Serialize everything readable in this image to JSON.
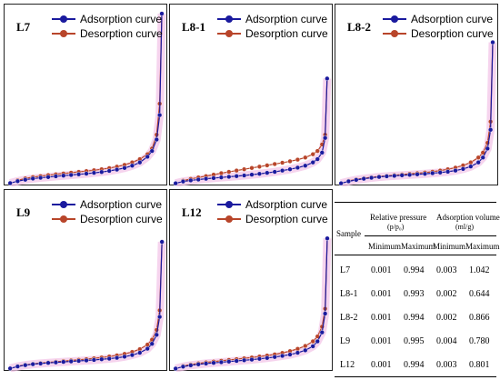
{
  "legend": {
    "adsorption_label": "Adsorption curve",
    "desorption_label": "Desorption curve"
  },
  "colors": {
    "adsorption": "#1a1a9e",
    "desorption": "#b8452a",
    "pink_glow": "#f3c6e8"
  },
  "chart_data": [
    {
      "type": "line",
      "title": "L7",
      "xlabel": "",
      "ylabel": "",
      "x_unit": "p/p0",
      "xlim": [
        0,
        1
      ],
      "ylim": [
        0,
        1.042
      ],
      "grid": false,
      "legend_position": "top",
      "series": [
        {
          "name": "Adsorption curve",
          "x": [
            0.001,
            0.05,
            0.1,
            0.15,
            0.2,
            0.25,
            0.3,
            0.35,
            0.4,
            0.45,
            0.5,
            0.55,
            0.6,
            0.65,
            0.7,
            0.75,
            0.8,
            0.85,
            0.9,
            0.93,
            0.96,
            0.98,
            0.994
          ],
          "y": [
            0.003,
            0.015,
            0.024,
            0.031,
            0.036,
            0.04,
            0.045,
            0.049,
            0.053,
            0.057,
            0.061,
            0.066,
            0.071,
            0.078,
            0.086,
            0.096,
            0.11,
            0.13,
            0.165,
            0.2,
            0.27,
            0.42,
            1.042
          ]
        },
        {
          "name": "Desorption curve",
          "x": [
            0.994,
            0.98,
            0.96,
            0.93,
            0.9,
            0.85,
            0.8,
            0.75,
            0.7,
            0.65,
            0.6,
            0.55,
            0.5,
            0.45,
            0.4,
            0.35,
            0.3,
            0.25,
            0.2,
            0.15,
            0.1,
            0.05
          ],
          "y": [
            1.042,
            0.49,
            0.3,
            0.215,
            0.18,
            0.15,
            0.13,
            0.115,
            0.104,
            0.095,
            0.088,
            0.082,
            0.077,
            0.072,
            0.067,
            0.062,
            0.057,
            0.052,
            0.046,
            0.04,
            0.032,
            0.02
          ]
        }
      ]
    },
    {
      "type": "line",
      "title": "L8-1",
      "xlabel": "",
      "ylabel": "",
      "x_unit": "p/p0",
      "xlim": [
        0,
        1
      ],
      "ylim": [
        0,
        1.042
      ],
      "grid": false,
      "legend_position": "top",
      "series": [
        {
          "name": "Adsorption curve",
          "x": [
            0.001,
            0.05,
            0.1,
            0.15,
            0.2,
            0.25,
            0.3,
            0.35,
            0.4,
            0.45,
            0.5,
            0.55,
            0.6,
            0.65,
            0.7,
            0.75,
            0.8,
            0.85,
            0.9,
            0.93,
            0.96,
            0.98,
            0.993
          ],
          "y": [
            0.002,
            0.013,
            0.02,
            0.025,
            0.03,
            0.034,
            0.038,
            0.042,
            0.046,
            0.05,
            0.055,
            0.06,
            0.066,
            0.072,
            0.08,
            0.088,
            0.098,
            0.11,
            0.13,
            0.15,
            0.19,
            0.28,
            0.644
          ]
        },
        {
          "name": "Desorption curve",
          "x": [
            0.993,
            0.98,
            0.96,
            0.93,
            0.9,
            0.85,
            0.8,
            0.75,
            0.7,
            0.65,
            0.6,
            0.55,
            0.5,
            0.45,
            0.4,
            0.35,
            0.3,
            0.25,
            0.2,
            0.15,
            0.1,
            0.05
          ],
          "y": [
            0.644,
            0.3,
            0.24,
            0.2,
            0.18,
            0.16,
            0.147,
            0.137,
            0.128,
            0.12,
            0.112,
            0.104,
            0.096,
            0.088,
            0.08,
            0.072,
            0.064,
            0.055,
            0.046,
            0.038,
            0.029,
            0.018
          ]
        }
      ]
    },
    {
      "type": "line",
      "title": "L8-2",
      "xlabel": "",
      "ylabel": "",
      "x_unit": "p/p0",
      "xlim": [
        0,
        1
      ],
      "ylim": [
        0,
        1.042
      ],
      "grid": false,
      "legend_position": "top",
      "series": [
        {
          "name": "Adsorption curve",
          "x": [
            0.001,
            0.05,
            0.1,
            0.15,
            0.2,
            0.25,
            0.3,
            0.35,
            0.4,
            0.45,
            0.5,
            0.55,
            0.6,
            0.65,
            0.7,
            0.75,
            0.8,
            0.85,
            0.9,
            0.93,
            0.96,
            0.98,
            0.994
          ],
          "y": [
            0.002,
            0.014,
            0.023,
            0.03,
            0.036,
            0.041,
            0.045,
            0.048,
            0.051,
            0.054,
            0.057,
            0.06,
            0.064,
            0.068,
            0.073,
            0.08,
            0.09,
            0.105,
            0.13,
            0.16,
            0.215,
            0.33,
            0.866
          ]
        },
        {
          "name": "Desorption curve",
          "x": [
            0.994,
            0.98,
            0.96,
            0.93,
            0.9,
            0.85,
            0.8,
            0.75,
            0.7,
            0.65,
            0.6,
            0.55,
            0.5,
            0.45,
            0.4,
            0.35,
            0.3,
            0.25,
            0.2,
            0.15,
            0.1,
            0.05
          ],
          "y": [
            0.866,
            0.38,
            0.25,
            0.19,
            0.16,
            0.13,
            0.112,
            0.098,
            0.088,
            0.08,
            0.073,
            0.068,
            0.064,
            0.06,
            0.056,
            0.052,
            0.048,
            0.044,
            0.039,
            0.033,
            0.026,
            0.017
          ]
        }
      ]
    },
    {
      "type": "line",
      "title": "L9",
      "xlabel": "",
      "ylabel": "",
      "x_unit": "p/p0",
      "xlim": [
        0,
        1
      ],
      "ylim": [
        0,
        1.042
      ],
      "grid": false,
      "legend_position": "top",
      "series": [
        {
          "name": "Adsorption curve",
          "x": [
            0.001,
            0.05,
            0.1,
            0.15,
            0.2,
            0.25,
            0.3,
            0.35,
            0.4,
            0.45,
            0.5,
            0.55,
            0.6,
            0.65,
            0.7,
            0.75,
            0.8,
            0.85,
            0.9,
            0.93,
            0.96,
            0.98,
            0.995
          ],
          "y": [
            0.004,
            0.016,
            0.024,
            0.03,
            0.034,
            0.038,
            0.041,
            0.044,
            0.047,
            0.05,
            0.053,
            0.056,
            0.06,
            0.064,
            0.069,
            0.076,
            0.086,
            0.1,
            0.125,
            0.155,
            0.21,
            0.32,
            0.78
          ]
        },
        {
          "name": "Desorption curve",
          "x": [
            0.995,
            0.98,
            0.96,
            0.93,
            0.9,
            0.85,
            0.8,
            0.75,
            0.7,
            0.65,
            0.6,
            0.55,
            0.5,
            0.45,
            0.4,
            0.35,
            0.3,
            0.25,
            0.2,
            0.15,
            0.1,
            0.05
          ],
          "y": [
            0.78,
            0.36,
            0.24,
            0.18,
            0.15,
            0.122,
            0.105,
            0.093,
            0.084,
            0.077,
            0.071,
            0.066,
            0.061,
            0.057,
            0.053,
            0.049,
            0.045,
            0.041,
            0.037,
            0.032,
            0.026,
            0.018
          ]
        }
      ]
    },
    {
      "type": "line",
      "title": "L12",
      "xlabel": "",
      "ylabel": "",
      "x_unit": "p/p0",
      "xlim": [
        0,
        1
      ],
      "ylim": [
        0,
        1.042
      ],
      "grid": false,
      "legend_position": "top",
      "series": [
        {
          "name": "Adsorption curve",
          "x": [
            0.001,
            0.05,
            0.1,
            0.15,
            0.2,
            0.25,
            0.3,
            0.35,
            0.4,
            0.45,
            0.5,
            0.55,
            0.6,
            0.65,
            0.7,
            0.75,
            0.8,
            0.85,
            0.9,
            0.93,
            0.96,
            0.98,
            0.994
          ],
          "y": [
            0.003,
            0.015,
            0.023,
            0.029,
            0.034,
            0.038,
            0.042,
            0.046,
            0.05,
            0.054,
            0.058,
            0.063,
            0.068,
            0.074,
            0.081,
            0.089,
            0.1,
            0.115,
            0.14,
            0.17,
            0.225,
            0.34,
            0.801
          ]
        },
        {
          "name": "Desorption curve",
          "x": [
            0.994,
            0.98,
            0.96,
            0.93,
            0.9,
            0.85,
            0.8,
            0.75,
            0.7,
            0.65,
            0.6,
            0.55,
            0.5,
            0.45,
            0.4,
            0.35,
            0.3,
            0.25,
            0.2,
            0.15,
            0.1,
            0.05
          ],
          "y": [
            0.801,
            0.37,
            0.26,
            0.2,
            0.17,
            0.142,
            0.124,
            0.11,
            0.099,
            0.09,
            0.083,
            0.077,
            0.071,
            0.066,
            0.061,
            0.056,
            0.051,
            0.046,
            0.041,
            0.035,
            0.028,
            0.019
          ]
        }
      ]
    },
    {
      "type": "table",
      "title": "",
      "header": {
        "sample": "Sample",
        "relative_pressure": "Relative pressure",
        "relative_pressure_unit": "(p/p₀)",
        "adsorption_volume": "Adsorption volume",
        "adsorption_volume_unit": "(ml/g)",
        "minimum": "Minimum",
        "maximum": "Maximum"
      },
      "columns": [
        "Sample",
        "Relative pressure Minimum",
        "Relative pressure Maximum",
        "Adsorption volume Minimum",
        "Adsorption volume Maximum"
      ],
      "rows": [
        [
          "L7",
          "0.001",
          "0.994",
          "0.003",
          "1.042"
        ],
        [
          "L8-1",
          "0.001",
          "0.993",
          "0.002",
          "0.644"
        ],
        [
          "L8-2",
          "0.001",
          "0.994",
          "0.002",
          "0.866"
        ],
        [
          "L9",
          "0.001",
          "0.995",
          "0.004",
          "0.780"
        ],
        [
          "L12",
          "0.001",
          "0.994",
          "0.003",
          "0.801"
        ]
      ]
    }
  ]
}
